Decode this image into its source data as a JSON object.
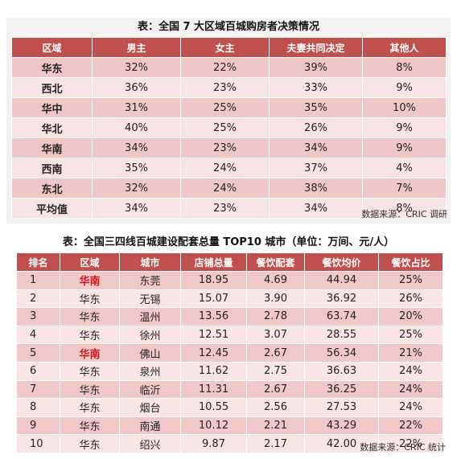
{
  "table1": {
    "title": "表：全国 7 大区域百城购房者决策情况",
    "headers": [
      "区域",
      "男主",
      "女主",
      "夫妻共同决定",
      "其他人"
    ],
    "rows": [
      [
        "华东",
        "32%",
        "22%",
        "39%",
        "8%"
      ],
      [
        "西北",
        "36%",
        "23%",
        "33%",
        "9%"
      ],
      [
        "华中",
        "31%",
        "25%",
        "35%",
        "10%"
      ],
      [
        "华北",
        "40%",
        "25%",
        "26%",
        "9%"
      ],
      [
        "华南",
        "34%",
        "23%",
        "34%",
        "9%"
      ],
      [
        "西南",
        "35%",
        "24%",
        "37%",
        "4%"
      ],
      [
        "东北",
        "32%",
        "24%",
        "38%",
        "7%"
      ],
      [
        "平均值",
        "34%",
        "23%",
        "34%",
        "8%"
      ]
    ],
    "source": "数据来源：CRIC 调研"
  },
  "table2": {
    "title": "表：全国三四线百城建设配套总量 TOP10 城市（单位：万间、元/人）",
    "headers": [
      "排名",
      "区域",
      "城市",
      "店铺总量",
      "餐饮配套",
      "餐饮均价",
      "餐饮占比"
    ],
    "rows": [
      [
        "1",
        "华南",
        "东莞",
        "18.95",
        "4.69",
        "44.94",
        "25%"
      ],
      [
        "2",
        "华东",
        "无锡",
        "15.07",
        "3.90",
        "36.92",
        "26%"
      ],
      [
        "3",
        "华东",
        "温州",
        "13.56",
        "2.78",
        "63.74",
        "20%"
      ],
      [
        "4",
        "华东",
        "徐州",
        "12.51",
        "3.07",
        "28.55",
        "25%"
      ],
      [
        "5",
        "华南",
        "佛山",
        "12.45",
        "2.67",
        "56.34",
        "21%"
      ],
      [
        "6",
        "华东",
        "泉州",
        "11.62",
        "2.75",
        "36.63",
        "24%"
      ],
      [
        "7",
        "华东",
        "临沂",
        "11.31",
        "2.67",
        "36.25",
        "24%"
      ],
      [
        "8",
        "华东",
        "烟台",
        "10.55",
        "2.56",
        "27.53",
        "24%"
      ],
      [
        "9",
        "华东",
        "南通",
        "10.12",
        "2.21",
        "43.29",
        "22%"
      ],
      [
        "10",
        "华东",
        "绍兴",
        "9.87",
        "2.17",
        "42.00",
        "22%"
      ]
    ],
    "highlight_region": "华南",
    "highlight_color": "#d0141b",
    "header_color": "#c0504d",
    "source": "数据来源：CRIC 统计"
  }
}
